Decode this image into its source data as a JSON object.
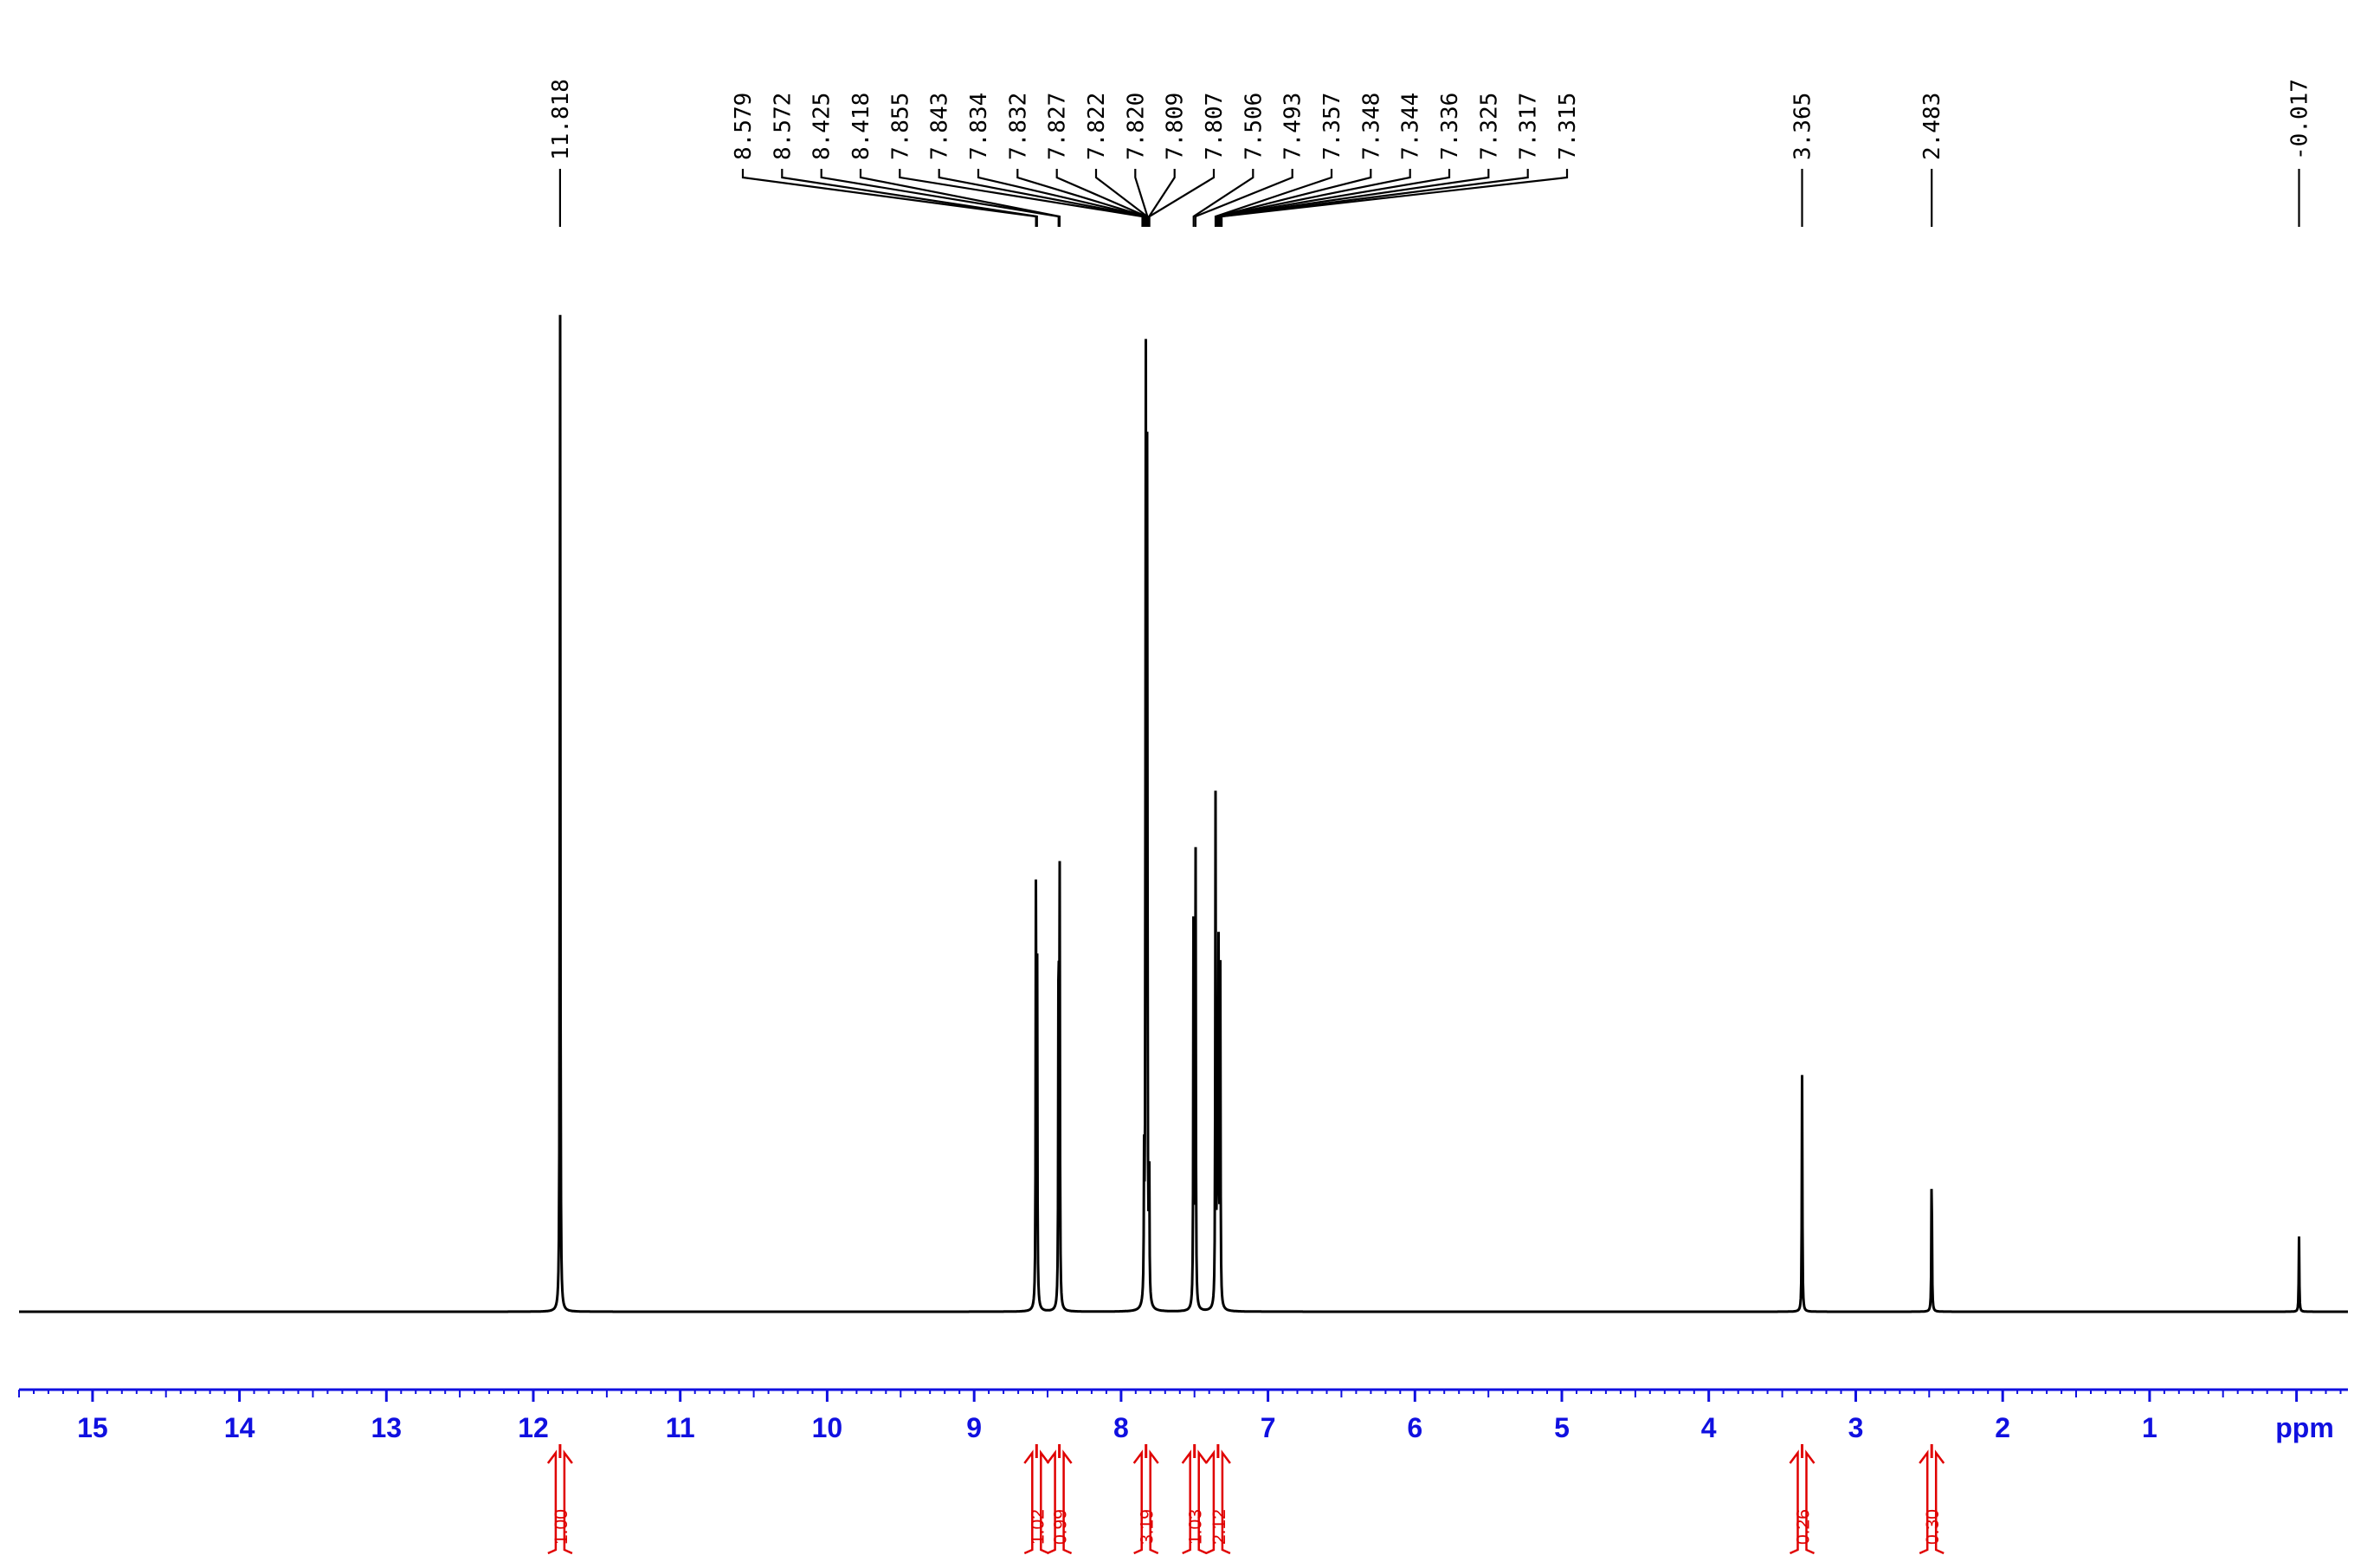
{
  "chart_data": {
    "type": "line",
    "title": "",
    "xlabel": "ppm",
    "ylabel": "",
    "x_reversed": true,
    "xlim": [
      15.5,
      -0.35
    ],
    "ylim": [
      0,
      1
    ],
    "grid": false,
    "x_ticks": [
      "15",
      "14",
      "13",
      "12",
      "11",
      "10",
      "9",
      "8",
      "7",
      "6",
      "5",
      "4",
      "3",
      "2",
      "1"
    ],
    "x_unit_label": "ppm",
    "colors": {
      "spectrum": "#000000",
      "axis": "#1010e0",
      "integral": "#e00000"
    },
    "peak_labels": [
      "11.818",
      "8.579",
      "8.572",
      "8.425",
      "8.418",
      "7.855",
      "7.843",
      "7.834",
      "7.832",
      "7.827",
      "7.822",
      "7.820",
      "7.809",
      "7.807",
      "7.506",
      "7.493",
      "7.357",
      "7.348",
      "7.344",
      "7.336",
      "7.325",
      "7.317",
      "7.315",
      "3.365",
      "2.483",
      "-0.017"
    ],
    "peaks": [
      {
        "ppm": 11.818,
        "height": 1.0
      },
      {
        "ppm": 8.579,
        "height": 0.4
      },
      {
        "ppm": 8.572,
        "height": 0.4
      },
      {
        "ppm": 8.425,
        "height": 0.4
      },
      {
        "ppm": 8.418,
        "height": 0.4
      },
      {
        "ppm": 7.843,
        "height": 0.12
      },
      {
        "ppm": 7.832,
        "height": 0.94
      },
      {
        "ppm": 7.822,
        "height": 0.8
      },
      {
        "ppm": 7.809,
        "height": 0.15
      },
      {
        "ppm": 7.506,
        "height": 0.47
      },
      {
        "ppm": 7.493,
        "height": 0.44
      },
      {
        "ppm": 7.357,
        "height": 0.47
      },
      {
        "ppm": 7.344,
        "height": 0.32
      },
      {
        "ppm": 7.336,
        "height": 0.32
      },
      {
        "ppm": 7.325,
        "height": 0.32
      },
      {
        "ppm": 3.365,
        "height": 0.22
      },
      {
        "ppm": 2.483,
        "height": 0.145
      },
      {
        "ppm": -0.017,
        "height": 0.07
      }
    ],
    "integrals": [
      {
        "ppm": 11.818,
        "value": "1.00"
      },
      {
        "ppm": 8.575,
        "value": "1.02"
      },
      {
        "ppm": 8.42,
        "value": "0.99"
      },
      {
        "ppm": 7.83,
        "value": "3.19"
      },
      {
        "ppm": 7.5,
        "value": "1.03"
      },
      {
        "ppm": 7.34,
        "value": "2.12"
      },
      {
        "ppm": 3.365,
        "value": "0.26"
      },
      {
        "ppm": 2.483,
        "value": "0.30"
      }
    ]
  }
}
